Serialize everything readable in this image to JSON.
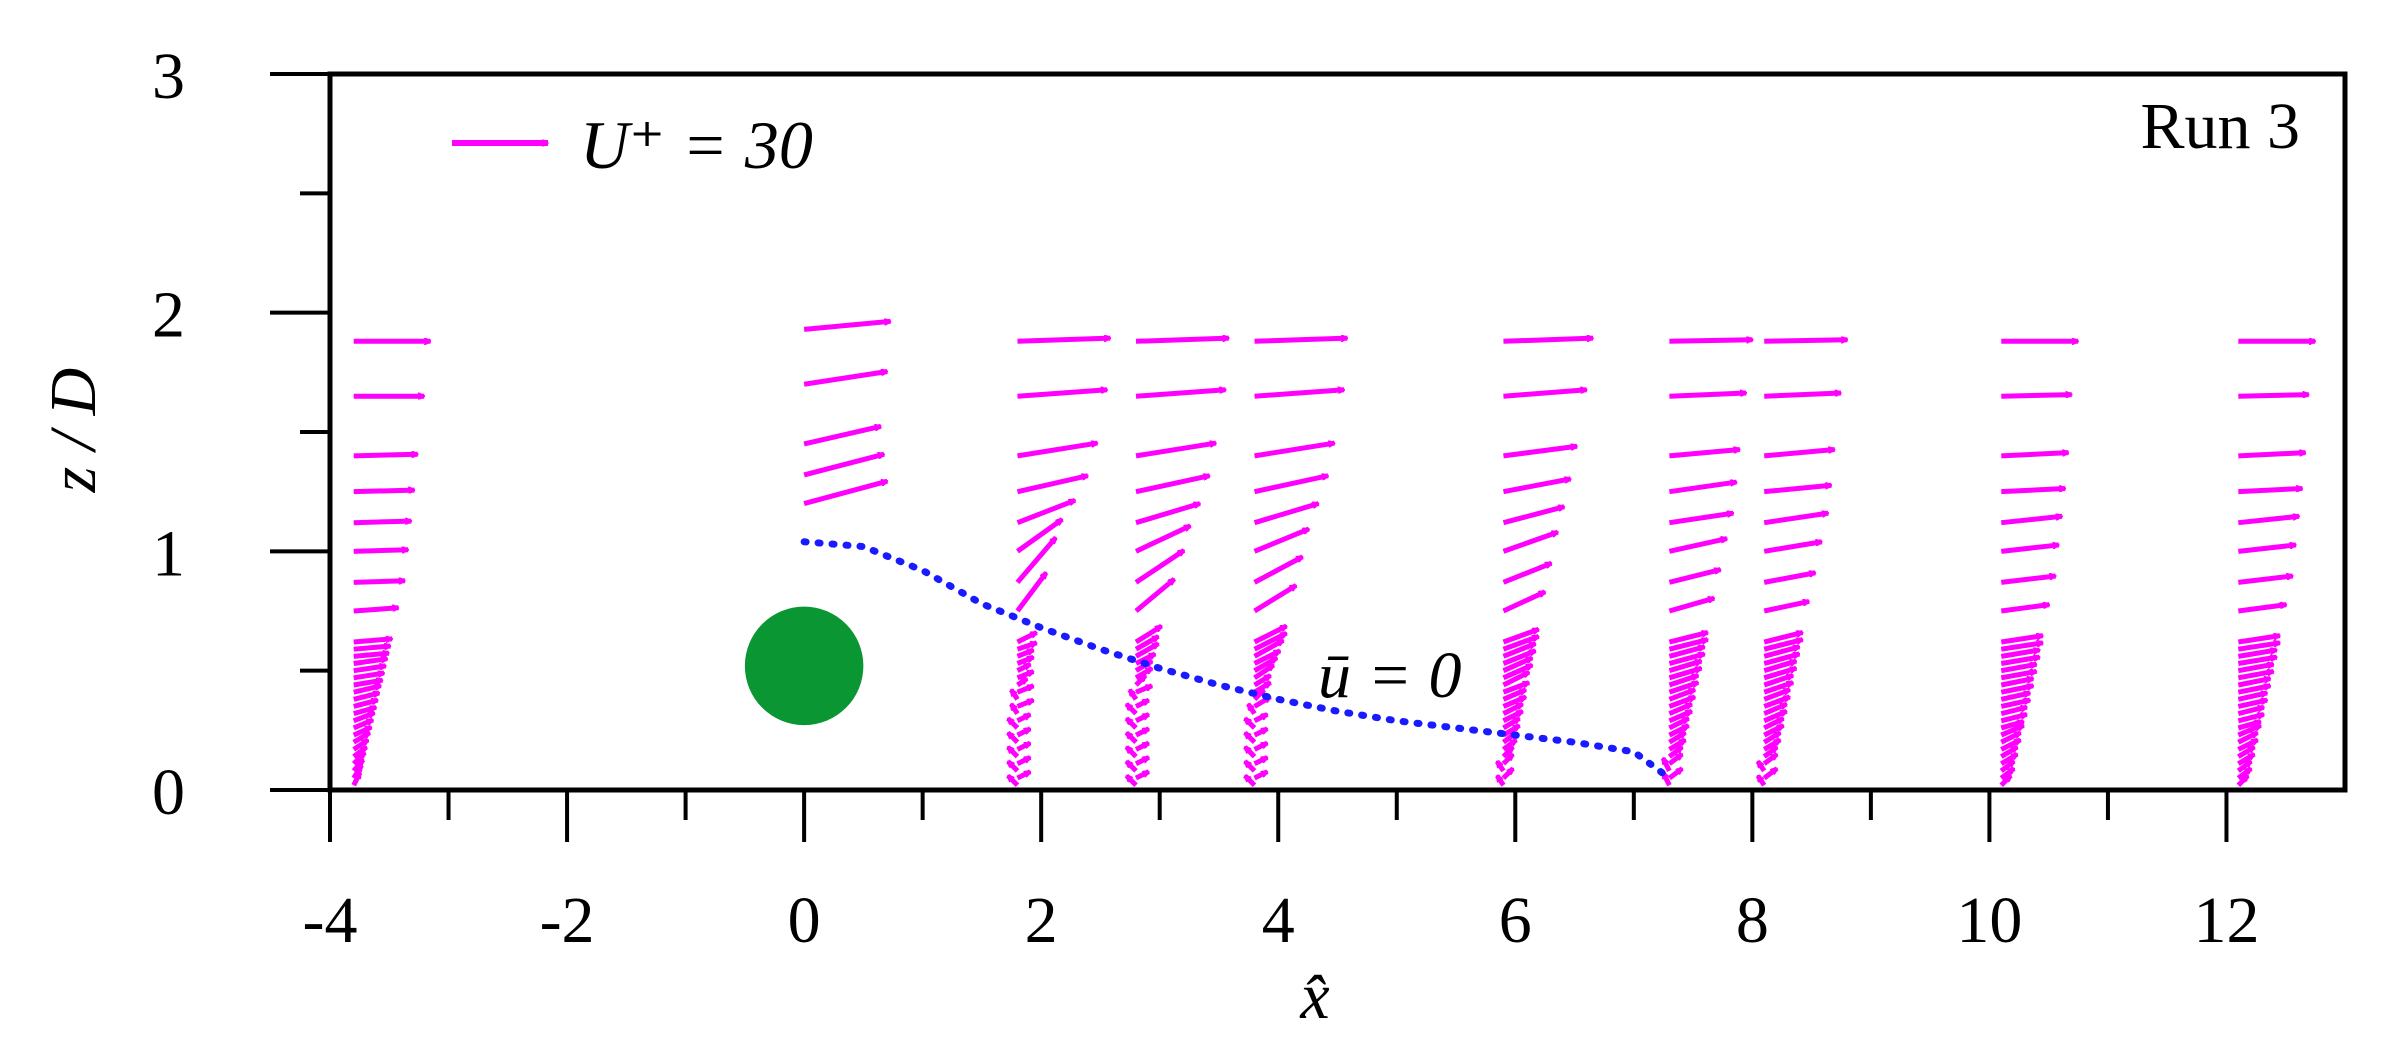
{
  "chart_data": {
    "type": "quiver",
    "xlabel": "x̂",
    "ylabel": "z / D",
    "xlim": [
      -4,
      13
    ],
    "ylim": [
      0,
      3
    ],
    "x_ticks": [
      "-4",
      "-2",
      "0",
      "2",
      "4",
      "6",
      "8",
      "10",
      "12"
    ],
    "y_ticks": [
      "0",
      "1",
      "2",
      "3"
    ],
    "run_label": "Run 3",
    "legend": {
      "label": "U⁺ = 30",
      "position": "top-left",
      "reference_speed": 30
    },
    "cylinder": {
      "center": [
        0,
        0.52
      ],
      "diameter": 1.0,
      "color": "#0a9633"
    },
    "arrow_color": "#ff00ff",
    "zero_velocity_line": {
      "label": "ū = 0",
      "color": "#1a1aff",
      "points": [
        [
          0,
          1.04
        ],
        [
          0.5,
          1.02
        ],
        [
          1.0,
          0.92
        ],
        [
          1.5,
          0.78
        ],
        [
          2.0,
          0.68
        ],
        [
          2.5,
          0.59
        ],
        [
          3.0,
          0.51
        ],
        [
          3.5,
          0.44
        ],
        [
          4.0,
          0.38
        ],
        [
          4.5,
          0.33
        ],
        [
          5.0,
          0.29
        ],
        [
          5.5,
          0.26
        ],
        [
          6.0,
          0.23
        ],
        [
          6.5,
          0.2
        ],
        [
          7.0,
          0.16
        ],
        [
          7.3,
          0.05
        ]
      ]
    },
    "z_levels": [
      0.02,
      0.05,
      0.08,
      0.11,
      0.14,
      0.17,
      0.2,
      0.23,
      0.26,
      0.29,
      0.32,
      0.35,
      0.38,
      0.41,
      0.44,
      0.47,
      0.5,
      0.53,
      0.56,
      0.59,
      0.62,
      0.75,
      0.87,
      1.0,
      1.12,
      1.25,
      1.4,
      1.65,
      1.88
    ],
    "profiles": [
      {
        "x": -3.8,
        "u": [
          2,
          2.5,
          3,
          3.5,
          4,
          4.5,
          5,
          5.5,
          6,
          6.5,
          7,
          7.5,
          8,
          8.5,
          9,
          9.5,
          10,
          10.5,
          11,
          11.5,
          12,
          14,
          16,
          17,
          18,
          19,
          20,
          22,
          24
        ],
        "w": [
          4,
          4,
          3.5,
          3.5,
          3,
          3,
          3,
          2.5,
          2.5,
          2.5,
          2,
          2,
          2,
          2,
          1.5,
          1.5,
          1.5,
          1.5,
          1,
          1,
          1,
          1,
          0.5,
          0.5,
          0.5,
          0.5,
          0.5,
          0,
          0
        ]
      },
      {
        "x": 0,
        "u": [],
        "w": [],
        "z_subset": [
          1.2,
          1.32,
          1.45,
          1.7,
          1.93
        ],
        "u_subset": [
          26,
          25,
          24,
          26,
          27
        ],
        "w_subset": [
          7,
          6.5,
          5.5,
          4,
          2.5
        ]
      },
      {
        "x": 1.8,
        "u": [
          -3,
          4,
          -3,
          4,
          -3,
          4,
          -3,
          4,
          -3,
          4,
          -2,
          5,
          -2,
          5,
          3,
          5,
          4,
          5,
          5,
          6,
          6,
          9,
          12,
          14,
          18,
          22,
          25,
          28,
          29
        ],
        "w": [
          3,
          2,
          3,
          2,
          3,
          2,
          3,
          2,
          3,
          2,
          3,
          2,
          3,
          2,
          2,
          2,
          2,
          2,
          2,
          2,
          3,
          12,
          14,
          10,
          7,
          5,
          4,
          2,
          1
        ]
      },
      {
        "x": 2.8,
        "u": [
          -3,
          4,
          -3,
          4,
          -3,
          4,
          -3,
          4,
          -3,
          4,
          -3,
          4,
          -2,
          5,
          3,
          5,
          5,
          6,
          7,
          7,
          8,
          12,
          15,
          17,
          20,
          23,
          25,
          28,
          29
        ],
        "w": [
          3,
          2,
          3,
          2,
          3,
          2,
          3,
          2,
          3,
          2,
          3,
          2,
          3,
          2,
          3,
          3,
          3,
          3,
          4,
          4,
          5,
          10,
          10,
          8,
          6,
          5,
          4,
          2,
          1
        ]
      },
      {
        "x": 3.8,
        "u": [
          -3,
          4,
          -3,
          4,
          -3,
          4,
          -3,
          4,
          -3,
          4,
          -2,
          5,
          3,
          5,
          5,
          6,
          7,
          8,
          9,
          10,
          10,
          13,
          15,
          17,
          20,
          23,
          25,
          28,
          29
        ],
        "w": [
          3,
          2,
          3,
          2,
          3,
          2,
          3,
          2,
          3,
          2,
          3,
          3,
          3,
          3,
          3,
          4,
          4,
          4,
          5,
          5,
          5,
          8,
          8,
          7,
          6,
          5,
          4,
          2,
          1
        ]
      },
      {
        "x": 5.9,
        "u": [
          -2,
          3,
          -2,
          3,
          3,
          4,
          4,
          5,
          5,
          6,
          6,
          7,
          7,
          8,
          8,
          9,
          9,
          10,
          10,
          11,
          11,
          13,
          15,
          17,
          19,
          21,
          23,
          26,
          28
        ],
        "w": [
          3,
          3,
          3,
          3,
          3,
          3,
          3,
          3,
          3,
          3,
          3,
          3,
          3,
          3,
          4,
          4,
          4,
          4,
          4,
          4,
          4,
          6,
          6,
          6,
          5,
          4,
          3,
          2,
          1
        ]
      },
      {
        "x": 7.3,
        "u": [
          -2,
          4,
          -2,
          4,
          4,
          5,
          5,
          6,
          6,
          7,
          7,
          8,
          8,
          9,
          9,
          10,
          10,
          11,
          11,
          12,
          12,
          14,
          16,
          18,
          20,
          21,
          22,
          24,
          26
        ],
        "w": [
          4,
          3,
          4,
          3,
          3,
          3,
          3,
          3,
          3,
          3,
          3,
          3,
          3,
          3,
          3,
          3,
          3,
          3,
          3,
          3,
          3,
          4,
          4,
          4,
          3,
          3,
          2,
          1,
          0.5
        ]
      },
      {
        "x": 8.1,
        "u": [
          -2,
          4,
          -2,
          4,
          4,
          5,
          5,
          6,
          6,
          7,
          7,
          8,
          8,
          9,
          9,
          10,
          10,
          11,
          11,
          12,
          12,
          14,
          16,
          18,
          20,
          21,
          22,
          24,
          26
        ],
        "w": [
          3,
          3,
          3,
          3,
          3,
          3,
          3,
          3,
          3,
          3,
          3,
          3,
          3,
          3,
          3,
          3,
          3,
          3,
          3,
          3,
          3,
          3,
          3,
          3,
          3,
          2,
          2,
          1,
          0.5
        ]
      },
      {
        "x": 10.1,
        "u": [
          3,
          4,
          4,
          5,
          5,
          6,
          6,
          7,
          7,
          8,
          8,
          9,
          9,
          10,
          10,
          11,
          11,
          12,
          12,
          13,
          13,
          15,
          17,
          18,
          19,
          20,
          21,
          22,
          24
        ],
        "w": [
          3,
          3,
          3,
          3,
          3,
          3,
          3,
          3,
          2,
          2,
          2,
          2,
          2,
          2,
          2,
          2,
          2,
          2,
          2,
          2,
          2,
          2,
          2,
          2,
          2,
          1,
          1,
          0.5,
          0
        ]
      },
      {
        "x": 12.1,
        "u": [
          3,
          4,
          4,
          5,
          5,
          6,
          6,
          7,
          7,
          8,
          8,
          9,
          9,
          10,
          10,
          11,
          11,
          12,
          12,
          13,
          13,
          15,
          17,
          18,
          19,
          20,
          21,
          22,
          24
        ],
        "w": [
          3,
          3,
          3,
          3,
          3,
          3,
          3,
          3,
          2,
          2,
          2,
          2,
          2,
          2,
          2,
          2,
          2,
          2,
          2,
          2,
          2,
          2,
          2,
          2,
          2,
          1,
          1,
          0.5,
          0
        ]
      }
    ]
  }
}
